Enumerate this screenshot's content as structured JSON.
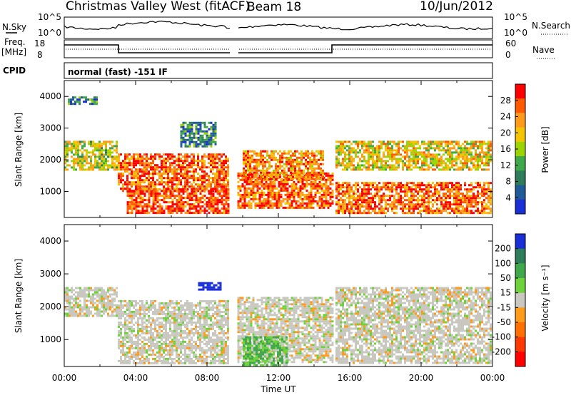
{
  "header": {
    "title": "Christmas Valley West (fitACF)",
    "beam": "Beam 18",
    "date": "10/Jun/2012"
  },
  "strips": {
    "nsky_label": "N.Sky",
    "nsky_ticks": [
      "10^5",
      "10^0"
    ],
    "nsearch_label": "N.Search",
    "nsearch_ticks": [
      "10^5",
      "10^0"
    ],
    "freq_label_1": "Freq.",
    "freq_label_2": "[MHz]",
    "freq_ticks": [
      "18",
      "8"
    ],
    "nave_label": "Nave",
    "nave_ticks": [
      "60",
      "0"
    ],
    "cpid_label": "CPID",
    "cpid_value": "normal (fast) -151 IF"
  },
  "chart_data": [
    {
      "type": "heatmap",
      "panel": "power",
      "xlabel": "",
      "ylabel": "Slant Range [km]",
      "xlim": [
        0,
        24
      ],
      "ylim": [
        180,
        4500
      ],
      "yticks": [
        1000,
        2000,
        3000,
        4000
      ],
      "colorbar": {
        "label": "Power [dB]",
        "ticks": [
          "28",
          "24",
          "20",
          "16",
          "12",
          "8",
          "4"
        ],
        "colors": [
          "#ff0000",
          "#ff5a00",
          "#ff9a1a",
          "#f5c400",
          "#9bd400",
          "#3ea84a",
          "#2e7d5a",
          "#1f5a99",
          "#1a2fd6"
        ]
      },
      "echo_regions": [
        {
          "t": [
            0.0,
            3.0
          ],
          "range": [
            1700,
            2600
          ],
          "db": 16
        },
        {
          "t": [
            0.2,
            1.8
          ],
          "range": [
            3750,
            4000
          ],
          "db": 8
        },
        {
          "t": [
            3.0,
            9.2
          ],
          "range": [
            1050,
            2200
          ],
          "db": 24
        },
        {
          "t": [
            3.5,
            9.2
          ],
          "range": [
            300,
            1100
          ],
          "db": 26
        },
        {
          "t": [
            6.5,
            8.5
          ],
          "range": [
            2400,
            3200
          ],
          "db": 8
        },
        {
          "t": [
            9.7,
            15.0
          ],
          "range": [
            500,
            1600
          ],
          "db": 24
        },
        {
          "t": [
            10.0,
            14.5
          ],
          "range": [
            1400,
            2300
          ],
          "db": 22
        },
        {
          "t": [
            15.2,
            23.9
          ],
          "range": [
            300,
            1300
          ],
          "db": 24
        },
        {
          "t": [
            15.2,
            23.9
          ],
          "range": [
            1700,
            2600
          ],
          "db": 18
        }
      ]
    },
    {
      "type": "heatmap",
      "panel": "velocity",
      "xlabel": "Time UT",
      "ylabel": "Slant Range [km]",
      "xlim": [
        0,
        24
      ],
      "ylim": [
        180,
        4500
      ],
      "xticks": [
        "00:00",
        "04:00",
        "08:00",
        "12:00",
        "16:00",
        "20:00",
        "00:00"
      ],
      "yticks": [
        1000,
        2000,
        3000,
        4000
      ],
      "colorbar": {
        "label": "Velocity [m s⁻¹]",
        "ticks": [
          "200",
          "100",
          "50",
          "15",
          "-15",
          "-50",
          "-100",
          "-200"
        ],
        "colors": [
          "#1a2fd6",
          "#2e7d5a",
          "#3ea84a",
          "#6ed23a",
          "#c8c8c0",
          "#ff9a1a",
          "#ff7000",
          "#ff3a00",
          "#ff0000"
        ]
      },
      "echo_regions": [
        {
          "t": [
            0.0,
            3.0
          ],
          "range": [
            1700,
            2600
          ],
          "v": 0
        },
        {
          "t": [
            3.0,
            9.2
          ],
          "range": [
            300,
            2200
          ],
          "v": 0
        },
        {
          "t": [
            7.5,
            8.8
          ],
          "range": [
            2550,
            2750
          ],
          "v": 200
        },
        {
          "t": [
            9.7,
            15.0
          ],
          "range": [
            300,
            2300
          ],
          "v": 0
        },
        {
          "t": [
            10.0,
            12.5
          ],
          "range": [
            200,
            1100
          ],
          "v": 30
        },
        {
          "t": [
            15.2,
            23.9
          ],
          "range": [
            300,
            2600
          ],
          "v": 0
        }
      ]
    }
  ]
}
